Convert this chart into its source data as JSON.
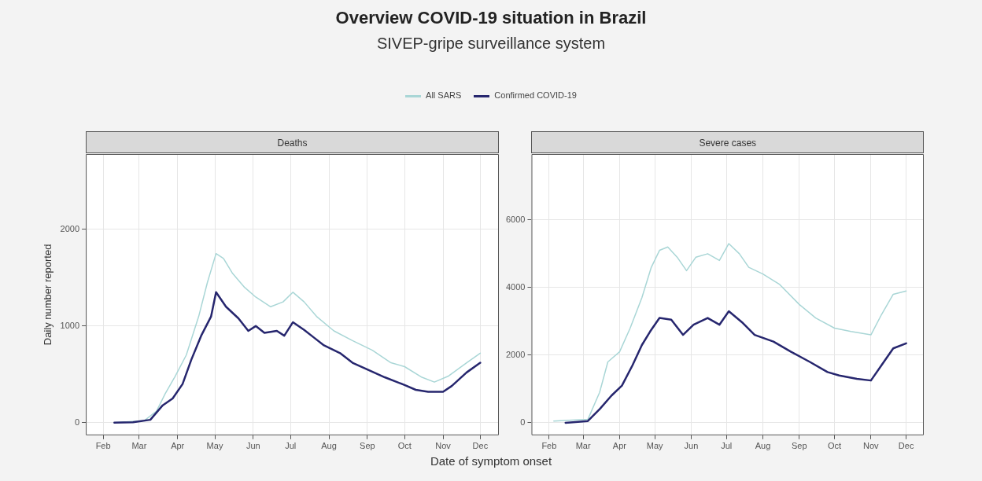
{
  "chart_data": [
    {
      "type": "line",
      "title": "Deaths",
      "annotations": [
        "Overview COVID-19 situation in Brazil",
        "SIVEP-gripe surveillance system"
      ],
      "ylabel": "Daily number reported",
      "legend": "top",
      "grid": true,
      "line_style": "solid",
      "xlim": [
        "--01-18",
        "--12-16"
      ],
      "xticks": [
        {
          "value": "--02-01",
          "label": "Feb"
        },
        {
          "value": "--03-01",
          "label": "Mar"
        },
        {
          "value": "--04-01",
          "label": "Apr"
        },
        {
          "value": "--05-01",
          "label": "May"
        },
        {
          "value": "--06-01",
          "label": "Jun"
        },
        {
          "value": "--07-01",
          "label": "Jul"
        },
        {
          "value": "--08-01",
          "label": "Aug"
        },
        {
          "value": "--09-01",
          "label": "Sep"
        },
        {
          "value": "--10-01",
          "label": "Oct"
        },
        {
          "value": "--11-01",
          "label": "Nov"
        },
        {
          "value": "--12-01",
          "label": "Dec"
        }
      ],
      "ylim": [
        -130,
        2780
      ],
      "yticks": [
        0,
        1000,
        2000
      ],
      "series": [
        {
          "name": "All SARS",
          "color": "#a9d6d6",
          "x": [
            "--02-10",
            "--03-05",
            "--03-15",
            "--03-22",
            "--03-30",
            "--04-08",
            "--04-18",
            "--04-25",
            "--05-02",
            "--05-08",
            "--05-15",
            "--05-25",
            "--06-03",
            "--06-15",
            "--06-25",
            "--07-03",
            "--07-12",
            "--07-22",
            "--08-05",
            "--08-20",
            "--09-05",
            "--09-20",
            "--10-01",
            "--10-15",
            "--10-25",
            "--11-05",
            "--11-20",
            "--12-01"
          ],
          "values": [
            0,
            20,
            120,
            300,
            480,
            700,
            1100,
            1450,
            1750,
            1700,
            1550,
            1400,
            1300,
            1200,
            1250,
            1350,
            1250,
            1100,
            950,
            850,
            750,
            620,
            580,
            470,
            420,
            480,
            620,
            720
          ]
        },
        {
          "name": "Confirmed COVID-19",
          "color": "#26266e",
          "x": [
            "--02-10",
            "--02-25",
            "--03-10",
            "--03-20",
            "--03-28",
            "--04-05",
            "--04-12",
            "--04-20",
            "--04-28",
            "--05-02",
            "--05-10",
            "--05-20",
            "--05-28",
            "--06-03",
            "--06-10",
            "--06-20",
            "--06-26",
            "--07-03",
            "--07-12",
            "--07-20",
            "--07-28",
            "--08-10",
            "--08-20",
            "--09-01",
            "--09-15",
            "--10-01",
            "--10-10",
            "--10-20",
            "--11-01",
            "--11-08",
            "--11-20",
            "--12-01"
          ],
          "values": [
            0,
            5,
            30,
            180,
            250,
            400,
            650,
            900,
            1100,
            1350,
            1200,
            1080,
            950,
            1000,
            930,
            950,
            900,
            1040,
            960,
            880,
            800,
            720,
            620,
            550,
            470,
            390,
            340,
            320,
            320,
            380,
            520,
            620
          ]
        }
      ]
    },
    {
      "type": "line",
      "title": "Severe cases",
      "xlabel": "Date of symptom onset",
      "grid": true,
      "line_style": "solid",
      "xlim": [
        "--01-17",
        "--12-16"
      ],
      "xticks": [
        {
          "value": "--02-01",
          "label": "Feb"
        },
        {
          "value": "--03-01",
          "label": "Mar"
        },
        {
          "value": "--04-01",
          "label": "Apr"
        },
        {
          "value": "--05-01",
          "label": "May"
        },
        {
          "value": "--06-01",
          "label": "Jun"
        },
        {
          "value": "--07-01",
          "label": "Jul"
        },
        {
          "value": "--08-01",
          "label": "Aug"
        },
        {
          "value": "--09-01",
          "label": "Sep"
        },
        {
          "value": "--10-01",
          "label": "Oct"
        },
        {
          "value": "--11-01",
          "label": "Nov"
        },
        {
          "value": "--12-01",
          "label": "Dec"
        }
      ],
      "ylim": [
        -370,
        7950
      ],
      "yticks": [
        0,
        2000,
        4000,
        6000
      ],
      "series": [
        {
          "color": "#a9d6d6",
          "x": [
            "--02-05",
            "--03-05",
            "--03-15",
            "--03-22",
            "--04-01",
            "--04-10",
            "--04-20",
            "--04-28",
            "--05-05",
            "--05-12",
            "--05-20",
            "--05-28",
            "--06-05",
            "--06-15",
            "--06-25",
            "--07-03",
            "--07-12",
            "--07-20",
            "--08-01",
            "--08-15",
            "--09-01",
            "--09-15",
            "--10-01",
            "--10-15",
            "--11-01",
            "--11-10",
            "--11-20",
            "--12-01"
          ],
          "values": [
            50,
            100,
            900,
            1800,
            2100,
            2800,
            3700,
            4600,
            5100,
            5200,
            4900,
            4500,
            4900,
            5000,
            4800,
            5300,
            5000,
            4600,
            4400,
            4100,
            3500,
            3100,
            2800,
            2700,
            2600,
            3200,
            3800,
            3900
          ]
        },
        {
          "color": "#26266e",
          "x": [
            "--02-15",
            "--03-05",
            "--03-15",
            "--03-25",
            "--04-03",
            "--04-12",
            "--04-20",
            "--04-27",
            "--05-05",
            "--05-15",
            "--05-25",
            "--06-03",
            "--06-15",
            "--06-25",
            "--07-03",
            "--07-15",
            "--07-25",
            "--08-10",
            "--08-25",
            "--09-10",
            "--09-25",
            "--10-05",
            "--10-20",
            "--11-01",
            "--11-10",
            "--11-20",
            "--12-01"
          ],
          "values": [
            0,
            50,
            400,
            800,
            1100,
            1700,
            2300,
            2700,
            3100,
            3050,
            2600,
            2900,
            3100,
            2900,
            3300,
            2950,
            2600,
            2400,
            2100,
            1800,
            1500,
            1400,
            1300,
            1250,
            1700,
            2200,
            2350
          ]
        }
      ]
    }
  ]
}
